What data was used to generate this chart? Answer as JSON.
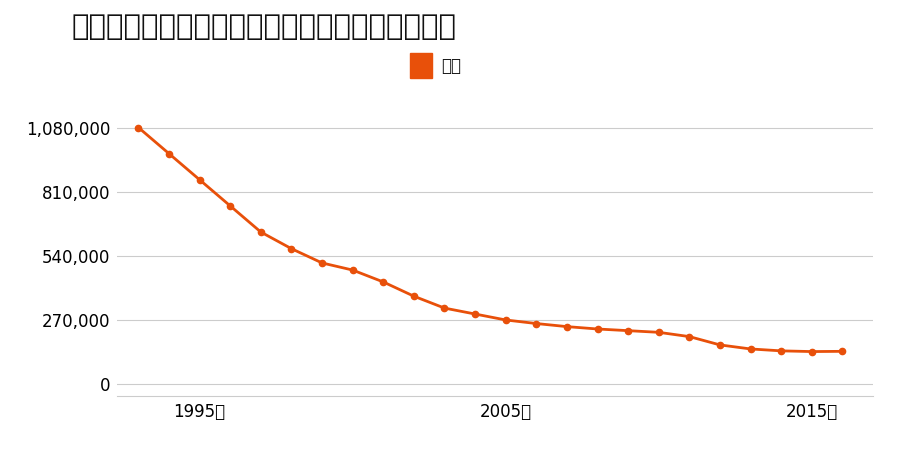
{
  "title": "徳島県徳島市かちどき橋１丁目２２番の地価推移",
  "legend_label": "価格",
  "line_color": "#E8500A",
  "marker_color": "#E8500A",
  "background_color": "#ffffff",
  "years": [
    1993,
    1994,
    1995,
    1996,
    1997,
    1998,
    1999,
    2000,
    2001,
    2002,
    2003,
    2004,
    2005,
    2006,
    2007,
    2008,
    2009,
    2010,
    2011,
    2012,
    2013,
    2014,
    2015,
    2016
  ],
  "values": [
    1080000,
    970000,
    860000,
    750000,
    640000,
    570000,
    510000,
    480000,
    430000,
    370000,
    320000,
    295000,
    270000,
    255000,
    242000,
    232000,
    225000,
    218000,
    200000,
    165000,
    148000,
    140000,
    137000,
    138000
  ],
  "yticks": [
    0,
    270000,
    540000,
    810000,
    1080000
  ],
  "ytick_labels": [
    "0",
    "270,000",
    "540,000",
    "810,000",
    "1,080,000"
  ],
  "xtick_positions": [
    1995,
    2005,
    2015
  ],
  "xtick_labels": [
    "1995年",
    "2005年",
    "2015年"
  ],
  "ylim": [
    -50000,
    1200000
  ],
  "xlim": [
    1992.3,
    2017.0
  ],
  "grid_color": "#cccccc",
  "title_fontsize": 21,
  "legend_fontsize": 12,
  "tick_fontsize": 12
}
